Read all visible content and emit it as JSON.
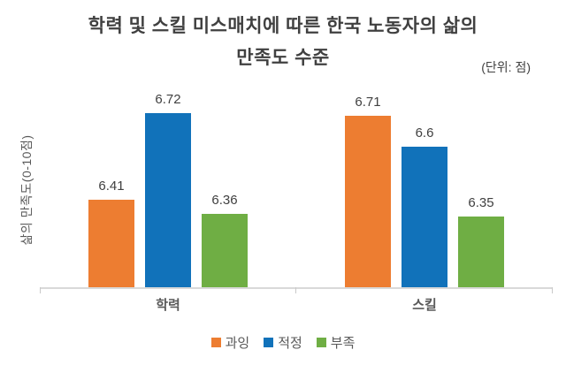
{
  "title": {
    "line1": "학력 및 스킬 미스매치에 따른 한국 노동자의 삶의",
    "line2": "만족도 수준",
    "unit_note": "(단위: 점)"
  },
  "chart_data": {
    "type": "bar",
    "title": "학력 및 스킬 미스매치에 따른 한국 노동자의 삶의 만족도 수준",
    "categories": [
      "학력",
      "스킬"
    ],
    "series": [
      {
        "name": "과잉",
        "color": "#ED7D31",
        "values": [
          6.41,
          6.71
        ]
      },
      {
        "name": "적정",
        "color": "#1172BA",
        "values": [
          6.72,
          6.6
        ]
      },
      {
        "name": "부족",
        "color": "#6FAE44",
        "values": [
          6.36,
          6.35
        ]
      }
    ],
    "xlabel": "",
    "ylabel": "삶의 만족도(0-10점)",
    "ylim": [
      6.1,
      6.9
    ],
    "grid": false,
    "legend_position": "bottom",
    "data_labels_shown": true
  },
  "colors": {
    "title_text": "#404040",
    "axis_text": "#595959",
    "axis_line": "#D9D9D9",
    "background": "#FFFFFF"
  }
}
